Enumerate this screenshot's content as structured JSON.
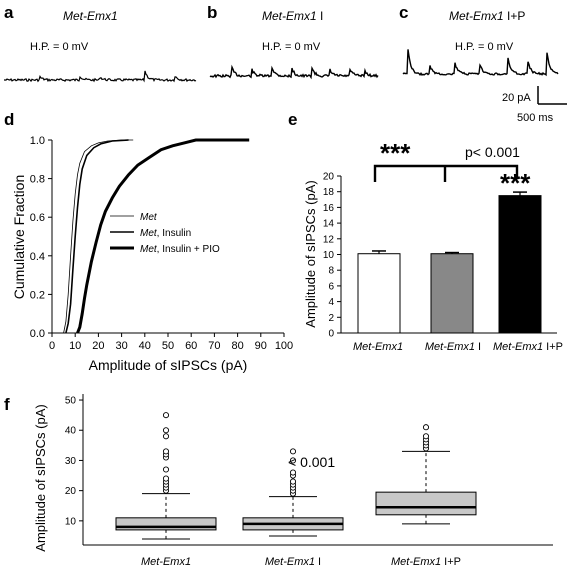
{
  "panels": {
    "a": {
      "letter": "a",
      "label": "Met-Emx1",
      "label_suffix": "",
      "hp": "H.P. = 0 mV"
    },
    "b": {
      "letter": "b",
      "label": "Met-Emx1",
      "label_suffix": " I",
      "hp": "H.P. = 0 mV"
    },
    "c": {
      "letter": "c",
      "label": "Met-Emx1",
      "label_suffix": " I+P",
      "hp": "H.P. = 0 mV",
      "scale_y": "20 pA",
      "scale_x": "500 ms"
    },
    "d": {
      "letter": "d"
    },
    "e": {
      "letter": "e"
    },
    "f": {
      "letter": "f"
    }
  },
  "chart_data": [
    {
      "type": "line",
      "panel": "d",
      "xlabel": "Amplitude of sIPSCs (pA)",
      "ylabel": "Cumulative Fraction",
      "xlim": [
        0,
        100
      ],
      "ylim": [
        0,
        1
      ],
      "xticks": [
        "0",
        "10",
        "20",
        "30",
        "40",
        "50",
        "60",
        "70",
        "80",
        "90",
        "100"
      ],
      "yticks": [
        "0.0",
        "0.2",
        "0.4",
        "0.6",
        "0.8",
        "1.0"
      ],
      "legend": [
        {
          "name": "Met",
          "suffix": "",
          "style": "thin"
        },
        {
          "name": "Met",
          "suffix": ", Insulin",
          "style": "medium"
        },
        {
          "name": "Met",
          "suffix": ", Insulin + PIO",
          "style": "thick"
        }
      ],
      "series": [
        {
          "name": "Met",
          "points": [
            [
              5,
              0
            ],
            [
              6,
              0.06
            ],
            [
              7,
              0.2
            ],
            [
              8,
              0.4
            ],
            [
              9,
              0.58
            ],
            [
              10,
              0.72
            ],
            [
              11,
              0.82
            ],
            [
              12,
              0.88
            ],
            [
              14,
              0.94
            ],
            [
              17,
              0.97
            ],
            [
              20,
              0.985
            ],
            [
              24,
              0.995
            ],
            [
              30,
              1.0
            ],
            [
              35,
              1.0
            ]
          ]
        },
        {
          "name": "Met, Insulin",
          "points": [
            [
              6,
              0
            ],
            [
              7,
              0.05
            ],
            [
              8,
              0.15
            ],
            [
              9,
              0.33
            ],
            [
              10,
              0.5
            ],
            [
              11,
              0.65
            ],
            [
              12,
              0.77
            ],
            [
              13,
              0.85
            ],
            [
              15,
              0.92
            ],
            [
              18,
              0.96
            ],
            [
              21,
              0.98
            ],
            [
              26,
              0.995
            ],
            [
              33,
              1.0
            ]
          ]
        },
        {
          "name": "Met, Insulin + PIO",
          "points": [
            [
              11,
              0
            ],
            [
              12,
              0.03
            ],
            [
              13,
              0.1
            ],
            [
              14,
              0.18
            ],
            [
              15,
              0.25
            ],
            [
              17,
              0.37
            ],
            [
              19,
              0.47
            ],
            [
              21,
              0.56
            ],
            [
              23,
              0.63
            ],
            [
              26,
              0.7
            ],
            [
              29,
              0.76
            ],
            [
              33,
              0.82
            ],
            [
              37,
              0.87
            ],
            [
              42,
              0.91
            ],
            [
              47,
              0.95
            ],
            [
              52,
              0.97
            ],
            [
              57,
              0.985
            ],
            [
              62,
              1.0
            ],
            [
              85,
              1.0
            ]
          ]
        }
      ]
    },
    {
      "type": "bar",
      "panel": "e",
      "ylabel": "Amplitude of sIPSCs (pA)",
      "ylim": [
        0,
        20
      ],
      "yticks": [
        "0",
        "2",
        "4",
        "6",
        "8",
        "10",
        "12",
        "14",
        "16",
        "18",
        "20"
      ],
      "categories": [
        {
          "name": "Met-Emx1",
          "suffix": ""
        },
        {
          "name": "Met-Emx1",
          "suffix": " I"
        },
        {
          "name": "Met-Emx1",
          "suffix": " I+P"
        }
      ],
      "values": [
        10.1,
        10.1,
        17.5
      ],
      "errors": [
        0.35,
        0.15,
        0.45
      ],
      "colors": [
        "#ffffff",
        "#888888",
        "#000000"
      ],
      "significance": {
        "stars_left": "***",
        "p_text": "p< 0.001",
        "stars_bar": "***"
      }
    },
    {
      "type": "box",
      "panel": "f",
      "ylabel": "Amplitude of sIPSCs (pA)",
      "ylim": [
        2,
        52
      ],
      "yticks": [
        "10",
        "20",
        "30",
        "40",
        "50"
      ],
      "categories": [
        {
          "name": "Met-Emx1",
          "suffix": ""
        },
        {
          "name": "Met-Emx1",
          "suffix": " I"
        },
        {
          "name": "Met-Emx1",
          "suffix": " I+P"
        }
      ],
      "boxes": [
        {
          "min": 4,
          "q1": 7,
          "median": 8,
          "q3": 11,
          "max": 19,
          "outliers": [
            20,
            21,
            22,
            23,
            24,
            27,
            31,
            32,
            33,
            38,
            40,
            45
          ]
        },
        {
          "min": 5,
          "q1": 7,
          "median": 9,
          "q3": 11,
          "max": 18,
          "outliers": [
            19,
            20,
            21,
            22,
            23,
            25,
            26,
            30,
            33
          ]
        },
        {
          "min": 9,
          "q1": 12,
          "median": 14.5,
          "q3": 19.5,
          "max": 33,
          "outliers": [
            34,
            35,
            36,
            37,
            38,
            41
          ]
        }
      ],
      "annotation": "< 0.001"
    }
  ]
}
